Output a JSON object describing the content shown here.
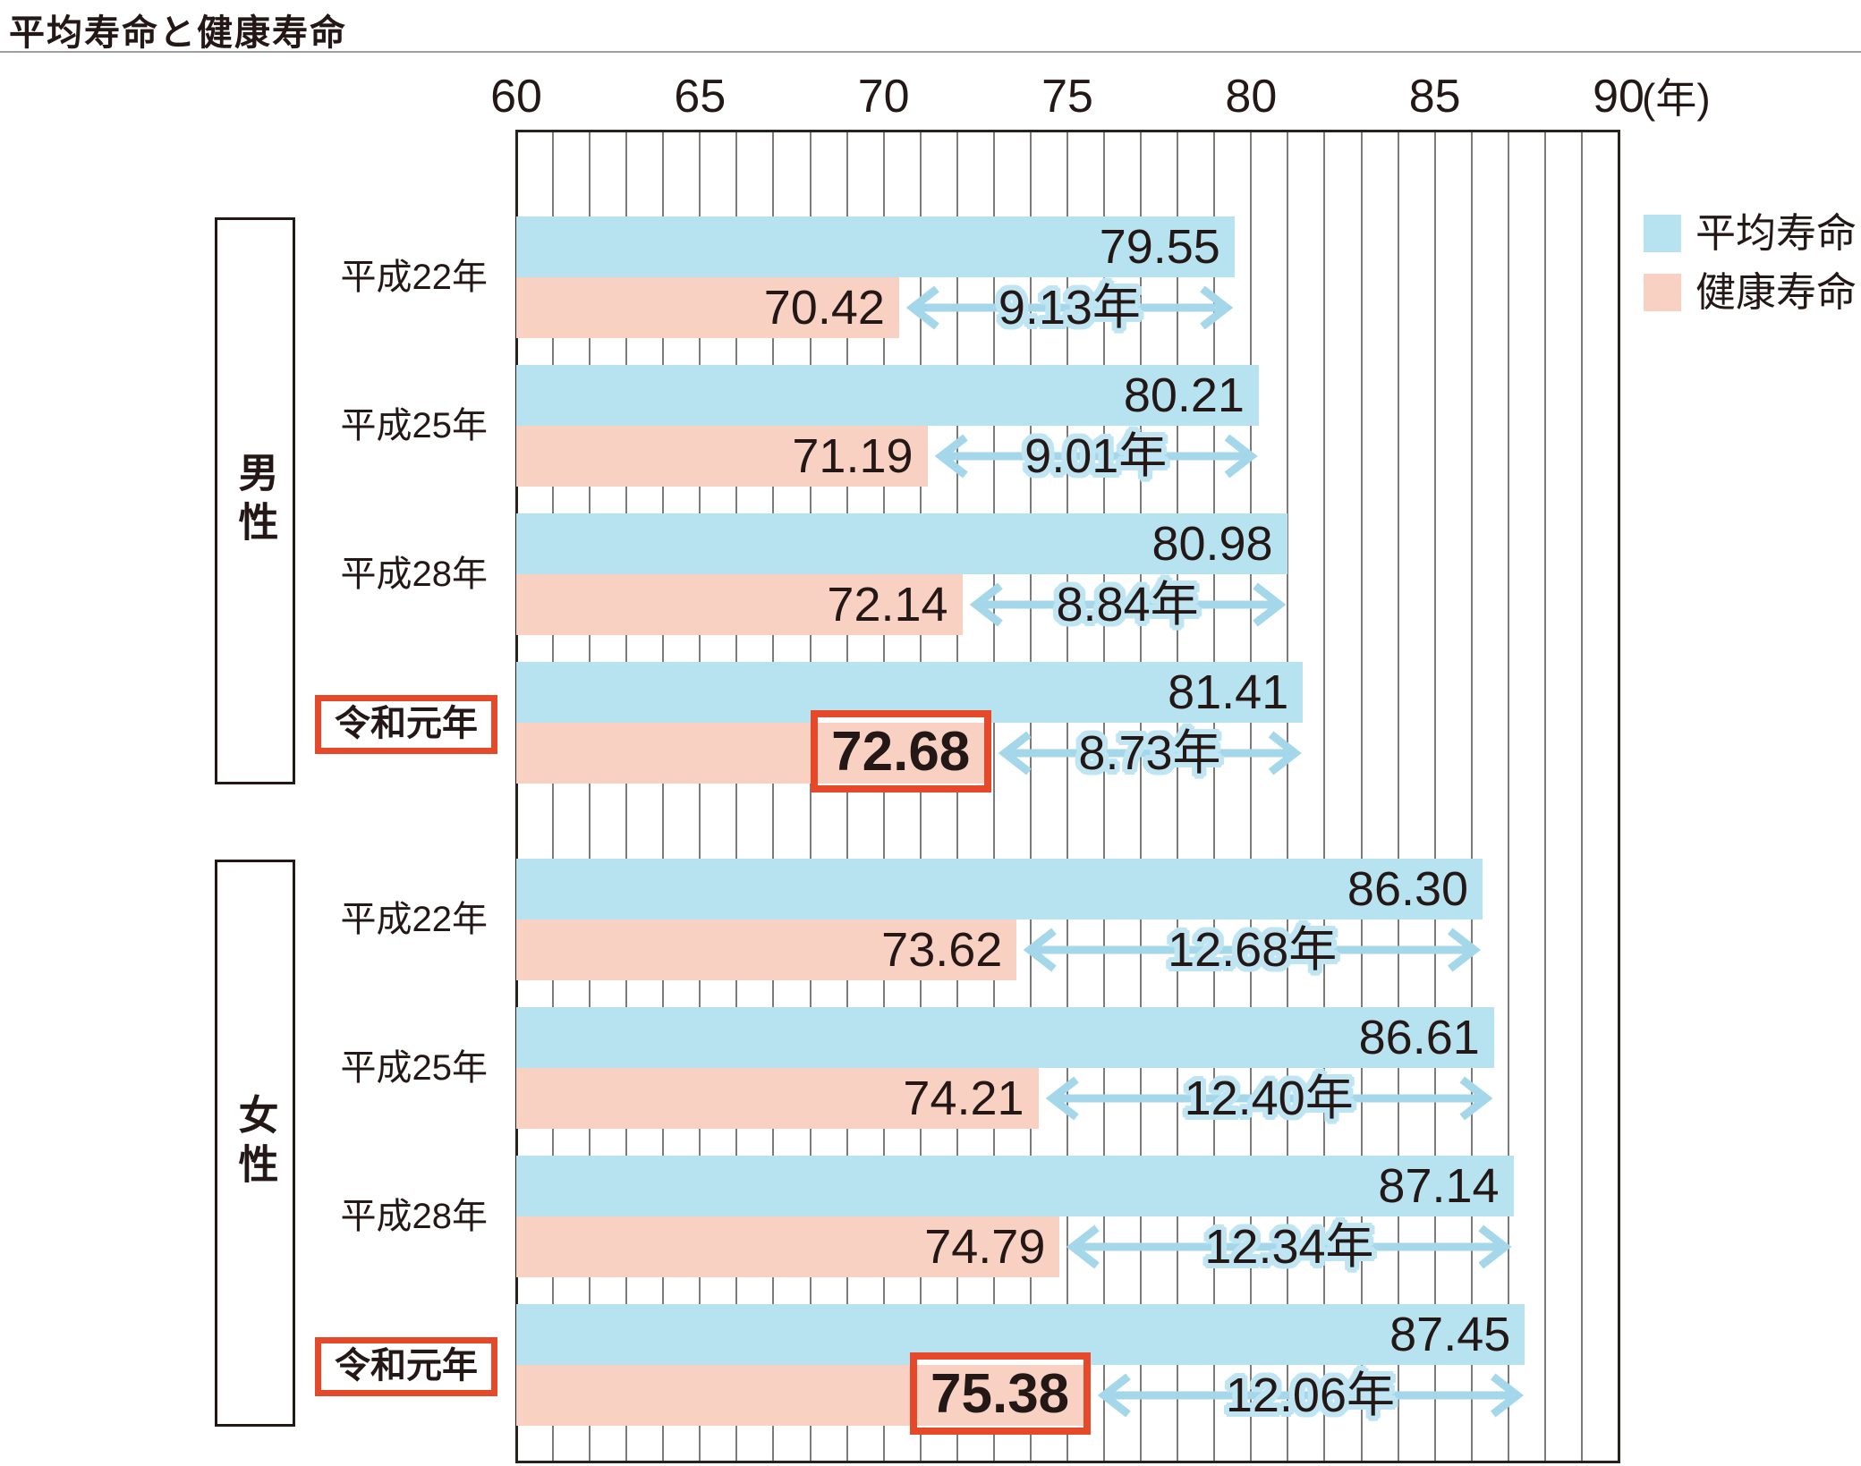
{
  "title": "平均寿命と健康寿命",
  "axis": {
    "min": 60,
    "max": 90,
    "tick_step": 5,
    "minor_step": 1,
    "ticks": [
      60,
      65,
      70,
      75,
      80,
      85,
      90
    ],
    "unit_label": "(年)"
  },
  "legend": [
    {
      "label": "平均寿命",
      "color": "#b7e2f0"
    },
    {
      "label": "健康寿命",
      "color": "#f8d1c3"
    }
  ],
  "chart_data": {
    "type": "bar",
    "orientation": "horizontal",
    "title": "平均寿命と健康寿命",
    "x_range": [
      60,
      90
    ],
    "x_unit": "年",
    "grid": "minor gridlines every 1 year, 60–90",
    "legend_position": "top-right",
    "series_names": [
      "平均寿命",
      "健康寿命"
    ],
    "groups": [
      {
        "group": "男性",
        "rows": [
          {
            "period": "平成22年",
            "avg": 79.55,
            "healthy": 70.42,
            "difference_label": "9.13年",
            "highlight": false
          },
          {
            "period": "平成25年",
            "avg": 80.21,
            "healthy": 71.19,
            "difference_label": "9.01年",
            "highlight": false
          },
          {
            "period": "平成28年",
            "avg": 80.98,
            "healthy": 72.14,
            "difference_label": "8.84年",
            "highlight": false
          },
          {
            "period": "令和元年",
            "avg": 81.41,
            "healthy": 72.68,
            "difference_label": "8.73年",
            "highlight": true
          }
        ]
      },
      {
        "group": "女性",
        "rows": [
          {
            "period": "平成22年",
            "avg": 86.3,
            "healthy": 73.62,
            "difference_label": "12.68年",
            "highlight": false
          },
          {
            "period": "平成25年",
            "avg": 86.61,
            "healthy": 74.21,
            "difference_label": "12.40年",
            "highlight": false
          },
          {
            "period": "平成28年",
            "avg": 87.14,
            "healthy": 74.79,
            "difference_label": "12.34年",
            "highlight": false
          },
          {
            "period": "令和元年",
            "avg": 87.45,
            "healthy": 75.38,
            "difference_label": "12.06年",
            "highlight": true
          }
        ]
      }
    ]
  },
  "colors": {
    "avg_bar": "#b7e2f0",
    "healthy_bar": "#f8d1c3",
    "arrow": "#a4d7ea",
    "halo": "#bfe5f3",
    "highlight_red": "#e6492a",
    "text_dark": "#231815",
    "gridline": "#7d7a79",
    "border_dark": "#262220",
    "rule_gray": "#9e9e9f"
  }
}
